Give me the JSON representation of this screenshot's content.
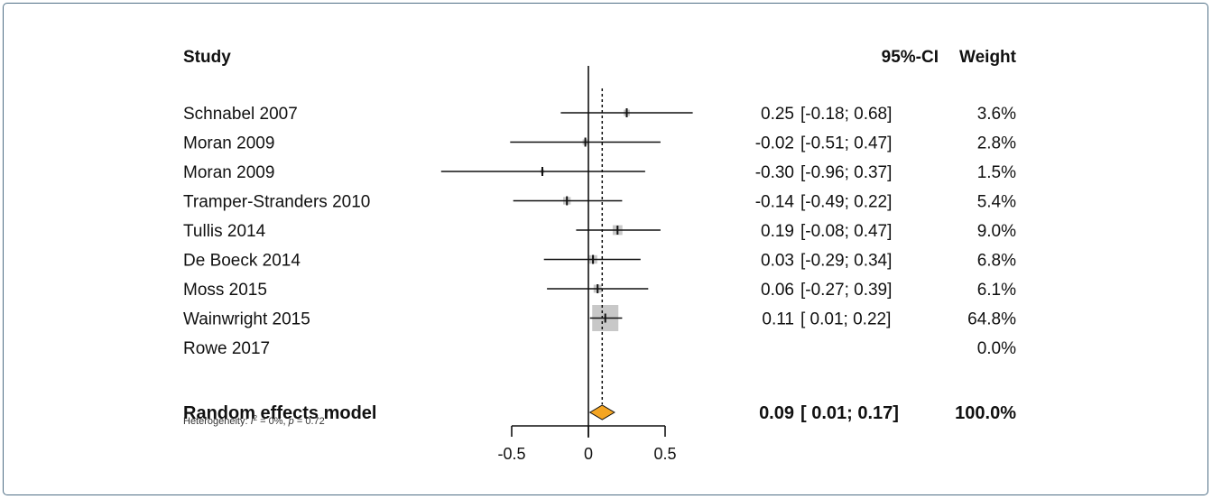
{
  "chart_data": {
    "type": "forest",
    "headers": {
      "study": "Study",
      "ci": "95%-CI",
      "weight": "Weight"
    },
    "studies": [
      {
        "name": "Schnabel 2007",
        "est": 0.25,
        "lo": -0.18,
        "hi": 0.68,
        "est_text": "0.25",
        "ci_text": "[-0.18; 0.68]",
        "weight_text": "3.6%",
        "weight": 3.6
      },
      {
        "name": "Moran 2009",
        "est": -0.02,
        "lo": -0.51,
        "hi": 0.47,
        "est_text": "-0.02",
        "ci_text": "[-0.51; 0.47]",
        "weight_text": "2.8%",
        "weight": 2.8
      },
      {
        "name": "Moran 2009",
        "est": -0.3,
        "lo": -0.96,
        "hi": 0.37,
        "est_text": "-0.30",
        "ci_text": "[-0.96; 0.37]",
        "weight_text": "1.5%",
        "weight": 1.5
      },
      {
        "name": "Tramper-Stranders 2010",
        "est": -0.14,
        "lo": -0.49,
        "hi": 0.22,
        "est_text": "-0.14",
        "ci_text": "[-0.49; 0.22]",
        "weight_text": "5.4%",
        "weight": 5.4
      },
      {
        "name": "Tullis 2014",
        "est": 0.19,
        "lo": -0.08,
        "hi": 0.47,
        "est_text": "0.19",
        "ci_text": "[-0.08; 0.47]",
        "weight_text": "9.0%",
        "weight": 9.0
      },
      {
        "name": "De Boeck 2014",
        "est": 0.03,
        "lo": -0.29,
        "hi": 0.34,
        "est_text": "0.03",
        "ci_text": "[-0.29; 0.34]",
        "weight_text": "6.8%",
        "weight": 6.8
      },
      {
        "name": "Moss 2015",
        "est": 0.06,
        "lo": -0.27,
        "hi": 0.39,
        "est_text": "0.06",
        "ci_text": "[-0.27; 0.39]",
        "weight_text": "6.1%",
        "weight": 6.1
      },
      {
        "name": "Wainwright 2015",
        "est": 0.11,
        "lo": 0.01,
        "hi": 0.22,
        "est_text": "0.11",
        "ci_text": "[ 0.01; 0.22]",
        "weight_text": "64.8%",
        "weight": 64.8
      },
      {
        "name": "Rowe 2017",
        "est": null,
        "lo": null,
        "hi": null,
        "est_text": "",
        "ci_text": "",
        "weight_text": "0.0%",
        "weight": 0.0
      }
    ],
    "pooled": {
      "name": "Random effects model",
      "est": 0.09,
      "lo": 0.01,
      "hi": 0.17,
      "est_text": "0.09",
      "ci_text": "[ 0.01; 0.17]",
      "weight_text": "100.0%"
    },
    "heterogeneity": {
      "prefix": "Heterogeneity: ",
      "i_symbol": "I",
      "sup": "2",
      "rest": " = 0%, ",
      "p_symbol": "p",
      "p_rest": " = 0.72"
    },
    "x_axis": {
      "range": [
        -0.5,
        0.5
      ],
      "ticks": [
        -0.5,
        0,
        0.5
      ],
      "tick_labels": [
        "-0.5",
        "0",
        "0.5"
      ]
    },
    "colors": {
      "square": "#c8c8c8",
      "diamond": "#f4a523",
      "line": "#111111"
    }
  }
}
